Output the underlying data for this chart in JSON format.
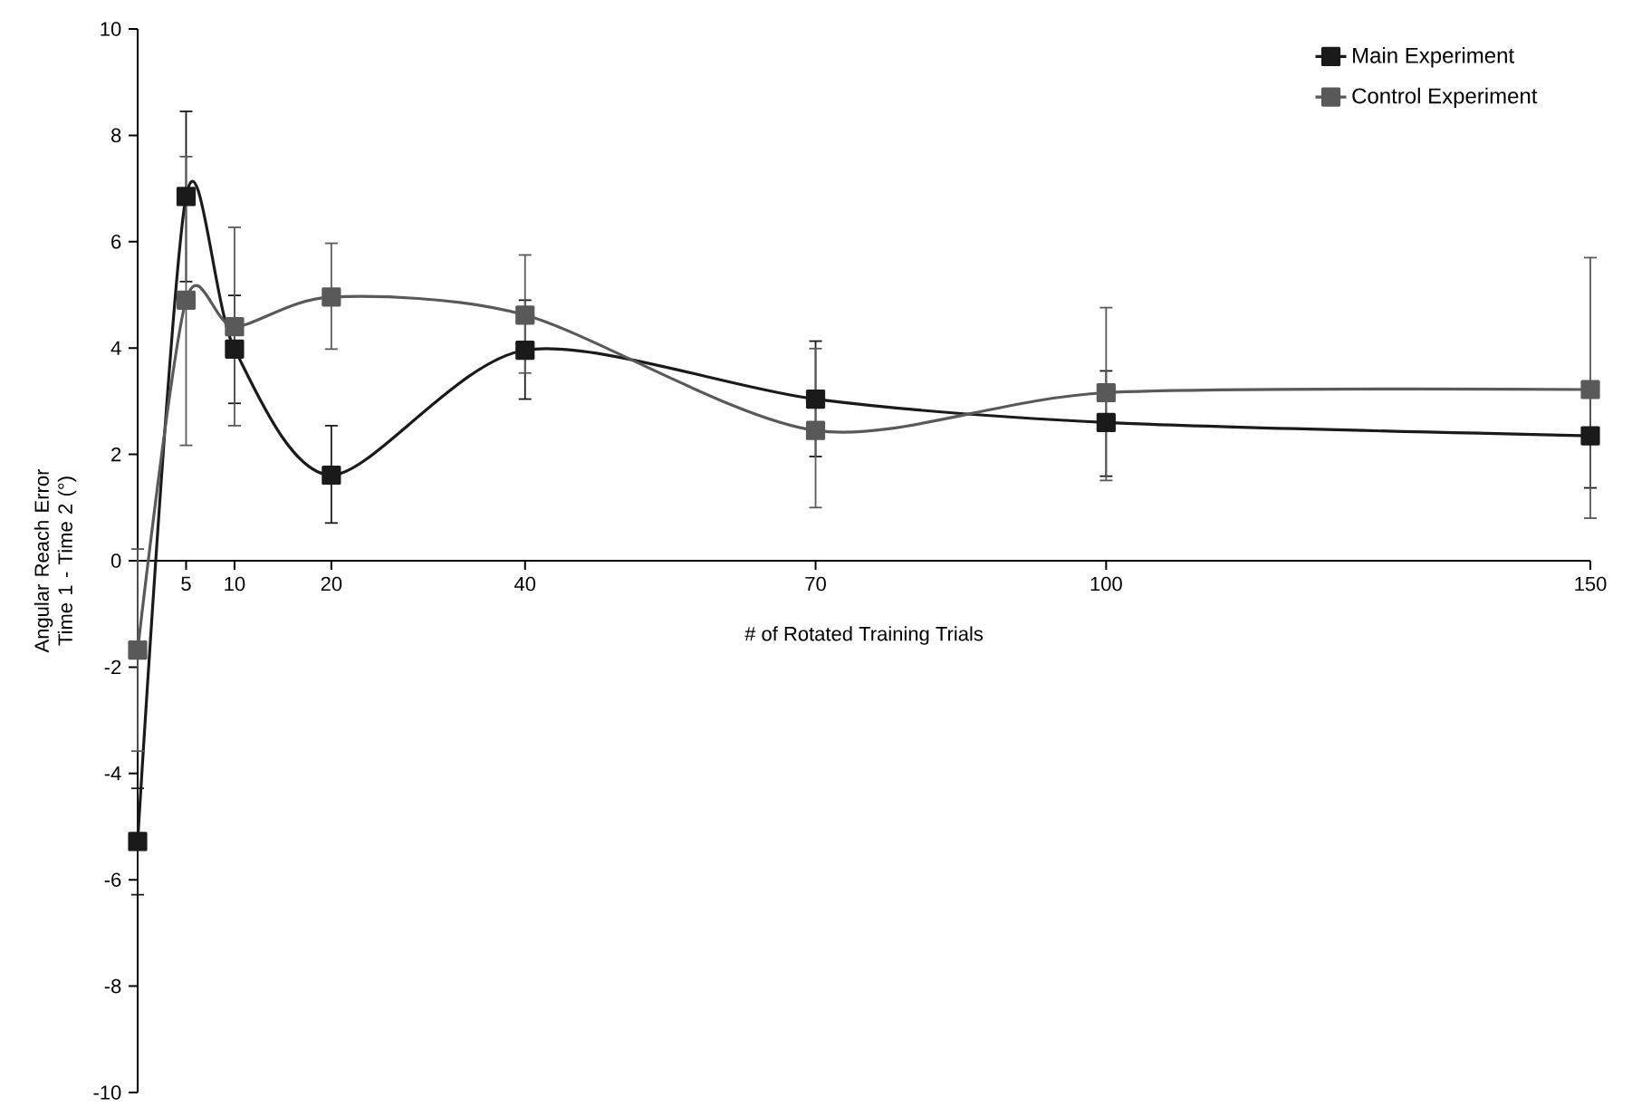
{
  "chart_data": {
    "type": "line",
    "xlabel": "# of Rotated Training Trials",
    "ylabel": "Angular Reach Error Time 1 - Time 2 (°)",
    "x": [
      0,
      5,
      10,
      20,
      40,
      70,
      100,
      150
    ],
    "series": [
      {
        "name": "Main Experiment",
        "color": "#1a1a1a",
        "values": [
          -5.28,
          6.85,
          3.98,
          1.61,
          3.96,
          3.04,
          2.6,
          2.35
        ],
        "errors": [
          [
            -6.28,
            -4.28
          ],
          [
            5.25,
            8.45
          ],
          [
            2.96,
            4.99
          ],
          [
            0.71,
            2.54
          ],
          [
            3.04,
            4.9
          ],
          [
            1.96,
            4.13
          ],
          [
            1.59,
            3.57
          ],
          [
            1.37,
            3.35
          ]
        ]
      },
      {
        "name": "Control Experiment",
        "color": "#595959",
        "values": [
          -1.68,
          4.9,
          4.4,
          4.96,
          4.62,
          2.45,
          3.16,
          3.22
        ],
        "errors": [
          [
            -3.58,
            0.22
          ],
          [
            2.17,
            7.6
          ],
          [
            2.54,
            6.27
          ],
          [
            3.98,
            5.97
          ],
          [
            3.53,
            5.75
          ],
          [
            1.0,
            3.99
          ],
          [
            1.51,
            4.76
          ],
          [
            0.8,
            5.7
          ]
        ]
      }
    ],
    "xlim": [
      0,
      150
    ],
    "xticks": [
      5,
      10,
      20,
      40,
      70,
      100,
      150
    ],
    "ylim": [
      -10,
      10
    ],
    "yticks": [
      -10,
      -8,
      -6,
      -4,
      -2,
      0,
      2,
      4,
      6,
      8,
      10
    ],
    "grid": false,
    "legend": "top right",
    "marker": "square",
    "line_style": "solid"
  }
}
